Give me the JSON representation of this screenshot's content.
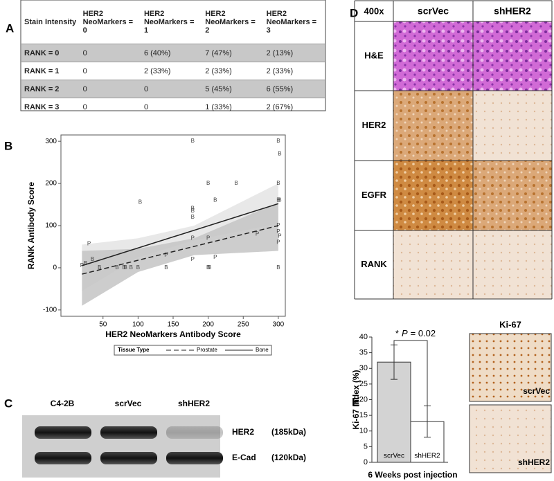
{
  "table": {
    "label": "A",
    "header": [
      "Stain Intensity",
      "HER2 NeoMarkers = 0",
      "HER2 NeoMarkers = 1",
      "HER2 NeoMarkers = 2",
      "HER2 NeoMarkers = 3"
    ],
    "rows": [
      [
        "RANK = 0",
        "0",
        "6 (40%)",
        "7 (47%)",
        "2 (13%)"
      ],
      [
        "RANK = 1",
        "0",
        "2 (33%)",
        "2 (33%)",
        "2 (33%)"
      ],
      [
        "RANK = 2",
        "0",
        "0",
        "5 (45%)",
        "6 (55%)"
      ],
      [
        "RANK = 3",
        "0",
        "0",
        "1 (33%)",
        "2 (67%)"
      ]
    ],
    "shaded_rows": [
      0,
      2
    ]
  },
  "chart_data": [
    {
      "type": "scatter",
      "label": "B",
      "xlabel": "HER2 NeoMarkers Antibody  Score",
      "ylabel": "RANK Antibody  Score",
      "xlim": [
        -10,
        310
      ],
      "ylim": [
        -115,
        315
      ],
      "xticks": [
        50,
        100,
        150,
        200,
        250,
        300
      ],
      "yticks": [
        -100,
        0,
        100,
        200,
        300
      ],
      "legend_title": "Tissue Type",
      "series": [
        {
          "name": "Prostate",
          "marker": "P",
          "color": "#444444",
          "line_style": "dashed",
          "x": [
            20,
            30,
            140,
            178,
            178,
            200,
            210,
            270,
            300,
            300,
            302,
            300
          ],
          "values": [
            5,
            57,
            30,
            20,
            70,
            70,
            25,
            80,
            85,
            60,
            75,
            100
          ],
          "fit": {
            "x": [
              20,
              300
            ],
            "y": [
              -15,
              100
            ]
          },
          "band": {
            "x": [
              20,
              100,
              180,
              300
            ],
            "lower": [
              -90,
              -10,
              30,
              40
            ],
            "upper": [
              40,
              45,
              70,
              155
            ],
            "color": "#c4c4c4"
          }
        },
        {
          "name": "Bone",
          "marker": "B",
          "color": "#444444",
          "line_style": "solid",
          "x": [
            25,
            35,
            45,
            70,
            80,
            82,
            90,
            100,
            103,
            140,
            178,
            178,
            178,
            178,
            200,
            202,
            200,
            210,
            240,
            300,
            302,
            300,
            302,
            300,
            300
          ],
          "values": [
            10,
            20,
            0,
            0,
            0,
            0,
            0,
            0,
            155,
            0,
            300,
            140,
            135,
            120,
            200,
            0,
            0,
            160,
            200,
            300,
            270,
            200,
            160,
            160,
            0
          ],
          "fit": {
            "x": [
              20,
              300
            ],
            "y": [
              5,
              152
            ]
          },
          "band": {
            "x": [
              20,
              100,
              180,
              300
            ],
            "lower": [
              -55,
              25,
              65,
              105
            ],
            "upper": [
              55,
              70,
              100,
              200
            ],
            "color": "#e4e4e4"
          }
        }
      ]
    },
    {
      "type": "bar",
      "label": "E",
      "categories": [
        "scrVec",
        "shHER2"
      ],
      "values": [
        32,
        13
      ],
      "errors": [
        5.5,
        5
      ],
      "colors": [
        "#d3d3d3",
        "#ffffff"
      ],
      "ylim": [
        0,
        40
      ],
      "yticks": [
        0,
        5,
        10,
        15,
        20,
        25,
        30,
        35,
        40
      ],
      "ylabel": "Ki-67 Index (%)",
      "xlabel": "6 Weeks post injection",
      "annotation": {
        "star": "*",
        "italic": "P",
        "text": "= 0.02"
      }
    }
  ],
  "blot": {
    "label": "C",
    "lanes": [
      "C4-2B",
      "scrVec",
      "shHER2"
    ],
    "proteins": [
      "HER2",
      "E-Cad"
    ],
    "sizes": [
      "(185kDa)",
      "(120kDa)"
    ]
  },
  "histology": {
    "label": "D",
    "magnification": "400x",
    "columns": [
      "scrVec",
      "shHER2"
    ],
    "stains": [
      "H&E",
      "HER2",
      "EGFR",
      "RANK"
    ]
  },
  "ki67": {
    "title": "Ki-67",
    "images": [
      "scrVec",
      "shHER2"
    ]
  }
}
